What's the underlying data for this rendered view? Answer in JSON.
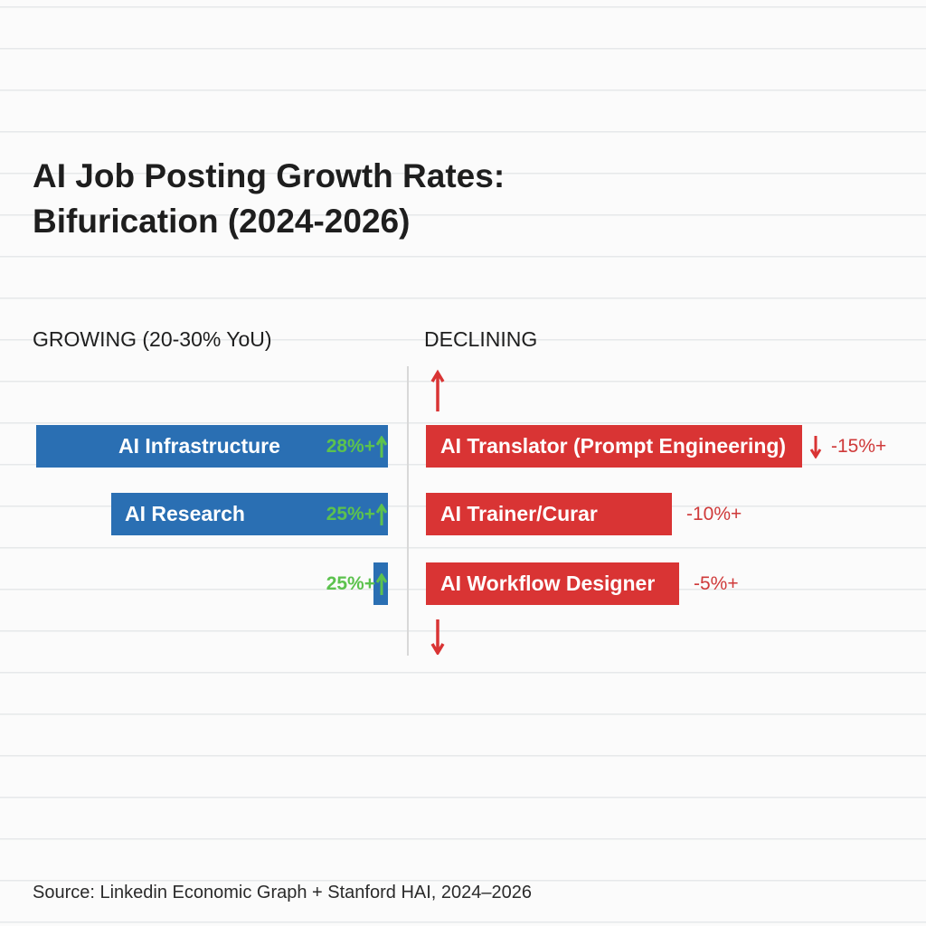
{
  "chart_data": {
    "type": "bar",
    "title": "AI Job Posting Growth Rates: Bifurication (2024-2026)",
    "title_lines": [
      "AI Job Posting Growth Rates:",
      "Bifurication (2024-2026)"
    ],
    "groups": [
      {
        "name": "GROWING (20-30% YoU)",
        "color": "#2a6fb3",
        "categories": [
          "AI Infrastructure",
          "AI Research",
          ""
        ],
        "values": [
          28,
          25,
          25
        ],
        "labels": [
          "28%+",
          "25%+",
          "25%+"
        ]
      },
      {
        "name": "DECLINING",
        "color": "#d93434",
        "categories": [
          "AI Translator (Prompt Engineering)",
          "AI Trainer/Curar",
          "AI Workflow Designer"
        ],
        "values": [
          -15,
          -10,
          -5
        ],
        "labels": [
          "-15%+",
          "-10%+",
          "-5%+"
        ]
      }
    ],
    "label_colors": {
      "growing": "#5cc24e",
      "declining": "#cf3a3a"
    }
  },
  "source": "Source: Linkedin Economic Graph + Stanford HAI, 2024–2026"
}
